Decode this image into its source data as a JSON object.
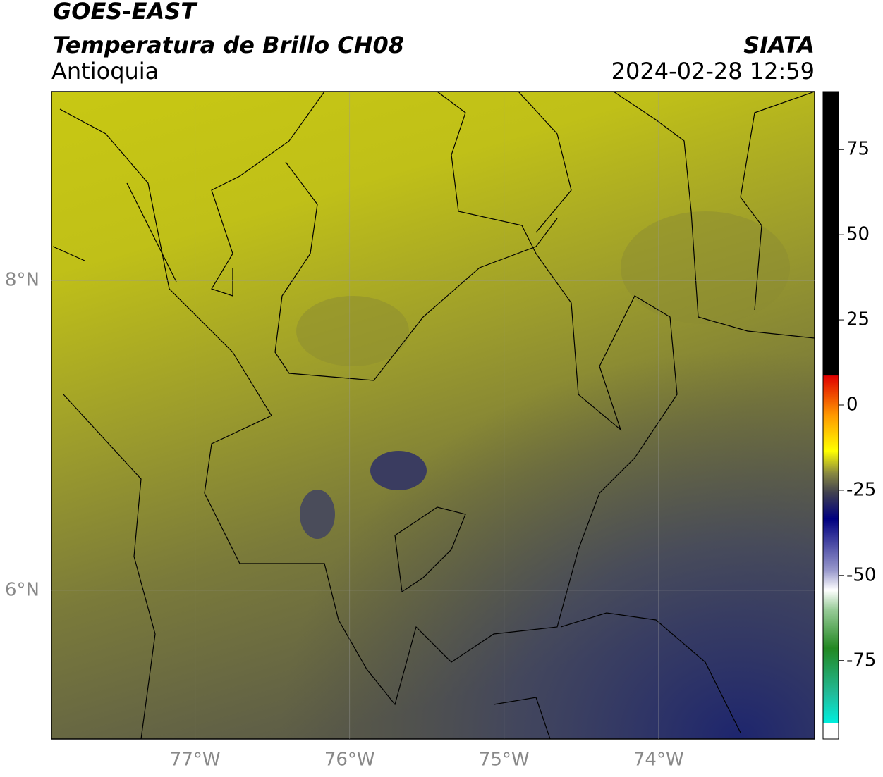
{
  "header": {
    "title": "GOES-EAST",
    "subtitle": "Temperatura de Brillo CH08",
    "region": "Antioquia",
    "source": "SIATA",
    "datetime": "2024-02-28 12:59"
  },
  "map": {
    "xlim": [
      -77.93,
      -72.99
    ],
    "ylim": [
      5.04,
      9.22
    ],
    "xticks": [
      {
        "value": -77,
        "label": "77°W"
      },
      {
        "value": -76,
        "label": "76°W"
      },
      {
        "value": -75,
        "label": "75°W"
      },
      {
        "value": -74,
        "label": "74°W"
      }
    ],
    "yticks": [
      {
        "value": 8,
        "label": "8°N"
      },
      {
        "value": 6,
        "label": "6°N"
      }
    ],
    "grid": true
  },
  "colorbar": {
    "lim": [
      -98,
      92
    ],
    "ticks": [
      75,
      50,
      25,
      0,
      -25,
      -50,
      -75
    ]
  }
}
